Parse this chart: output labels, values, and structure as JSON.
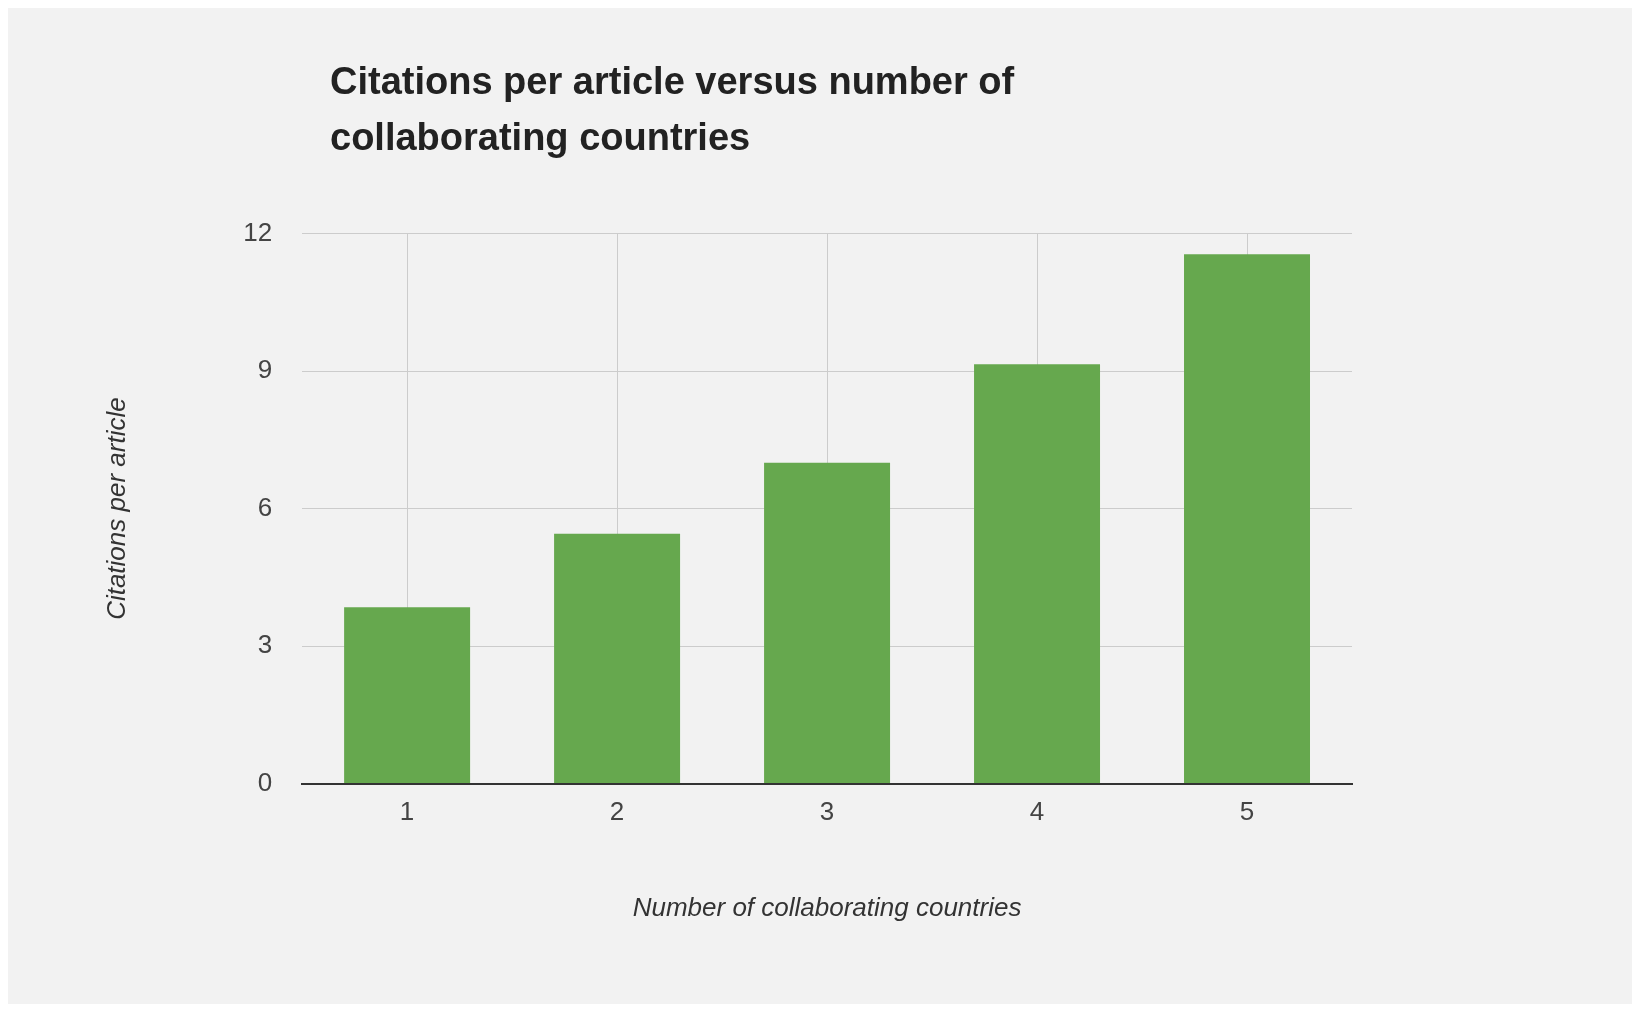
{
  "chart_data": {
    "type": "bar",
    "title": "Citations per article versus number of collaborating countries",
    "xlabel": "Number of collaborating countries",
    "ylabel": "Citations per article",
    "categories": [
      "1",
      "2",
      "3",
      "4",
      "5"
    ],
    "values": [
      3.85,
      5.45,
      7.0,
      9.15,
      11.55
    ],
    "color": "#66a84e",
    "ylim": [
      0,
      12
    ],
    "yticks": [
      0,
      3,
      6,
      9,
      12
    ],
    "grid": true,
    "legend": false
  }
}
